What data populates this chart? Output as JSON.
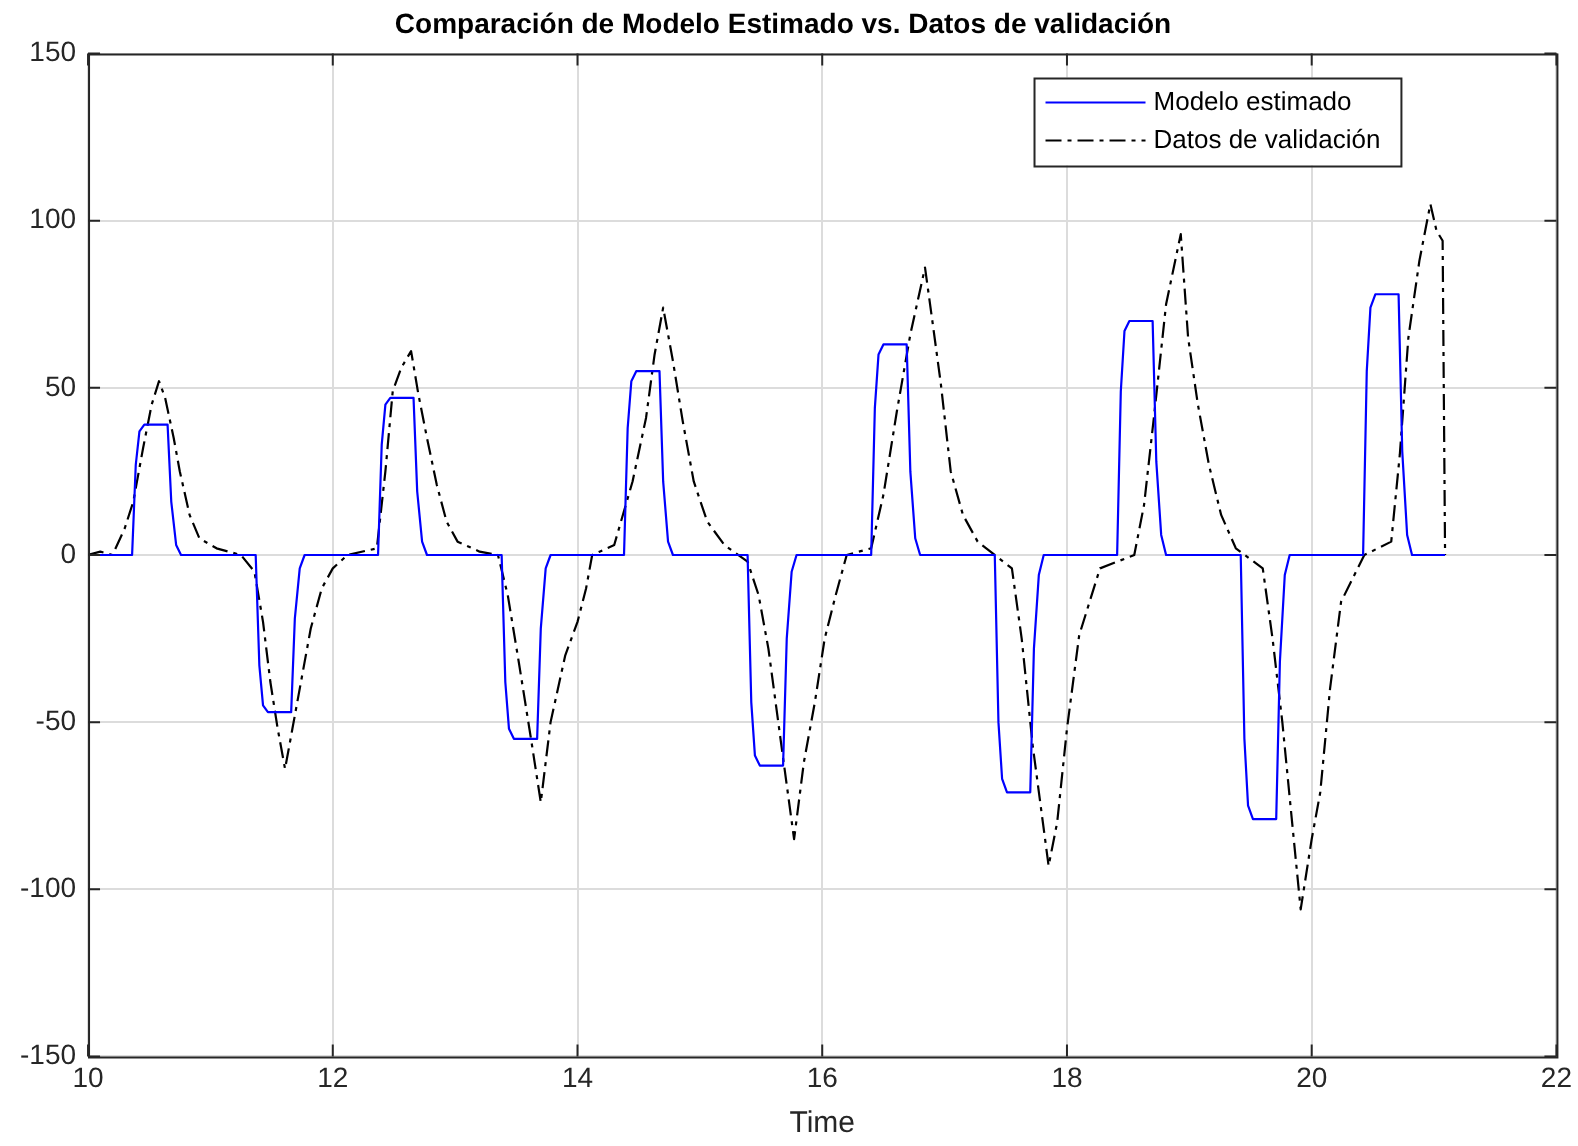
{
  "chart_data": {
    "type": "line",
    "title": "Comparación de Modelo Estimado vs. Datos de validación",
    "xlabel": "Time",
    "xlim": [
      10,
      22
    ],
    "xticks": [
      10,
      12,
      14,
      16,
      18,
      20,
      22
    ],
    "ylim": [
      -150,
      150
    ],
    "yticks": [
      -150,
      -100,
      -50,
      0,
      50,
      100,
      150
    ],
    "grid": true,
    "legend": "top right",
    "marker": "none",
    "series": [
      {
        "name": "Modelo estimado",
        "color": "#0000ff",
        "line_style": "solid",
        "x": [
          10,
          10.36,
          10.39,
          10.42,
          10.46,
          10.65,
          10.68,
          10.72,
          10.76,
          11.37,
          11.4,
          11.43,
          11.47,
          11.66,
          11.69,
          11.73,
          11.77,
          12.37,
          12.4,
          12.43,
          12.47,
          12.66,
          12.69,
          12.73,
          12.77,
          13.38,
          13.41,
          13.44,
          13.48,
          13.67,
          13.7,
          13.74,
          13.78,
          14.38,
          14.41,
          14.44,
          14.48,
          14.67,
          14.7,
          14.74,
          14.78,
          15.39,
          15.42,
          15.45,
          15.49,
          15.68,
          15.71,
          15.75,
          15.79,
          16.4,
          16.43,
          16.46,
          16.5,
          16.69,
          16.72,
          16.76,
          16.8,
          17.41,
          17.44,
          17.47,
          17.51,
          17.7,
          17.73,
          17.77,
          17.81,
          18.41,
          18.44,
          18.47,
          18.51,
          18.7,
          18.73,
          18.77,
          18.81,
          19.42,
          19.45,
          19.48,
          19.52,
          19.71,
          19.74,
          19.78,
          19.82,
          20.42,
          20.45,
          20.48,
          20.52,
          20.71,
          20.74,
          20.78,
          20.82,
          21.09
        ],
        "values": [
          0,
          0,
          27,
          37,
          39,
          39,
          16,
          3,
          0,
          0,
          -33,
          -45,
          -47,
          -47,
          -19,
          -4,
          0,
          0,
          33,
          45,
          47,
          47,
          19,
          4,
          0,
          0,
          -38,
          -52,
          -55,
          -55,
          -22,
          -4,
          0,
          0,
          38,
          52,
          55,
          55,
          22,
          4,
          0,
          0,
          -44,
          -60,
          -63,
          -63,
          -25,
          -5,
          0,
          0,
          44,
          60,
          63,
          63,
          25,
          5,
          0,
          0,
          -50,
          -67,
          -71,
          -71,
          -28,
          -6,
          0,
          0,
          49,
          67,
          70,
          70,
          28,
          6,
          0,
          0,
          -55,
          -75,
          -79,
          -79,
          -32,
          -6,
          0,
          0,
          55,
          74,
          78,
          78,
          31,
          6,
          0,
          0
        ]
      },
      {
        "name": "Datos de validación",
        "color": "#000000",
        "line_style": "dashed",
        "x": [
          10,
          10.1,
          10.2,
          10.3,
          10.37,
          10.45,
          10.52,
          10.58,
          10.63,
          10.7,
          10.75,
          10.83,
          10.91,
          11.05,
          11.25,
          11.36,
          11.43,
          11.49,
          11.55,
          11.61,
          11.67,
          11.74,
          11.82,
          11.91,
          12,
          12.12,
          12.36,
          12.43,
          12.49,
          12.56,
          12.64,
          12.7,
          12.77,
          12.85,
          12.93,
          13.02,
          13.2,
          13.35,
          13.43,
          13.52,
          13.62,
          13.7,
          13.78,
          13.9,
          14,
          14.07,
          14.12,
          14.18,
          14.3,
          14.45,
          14.56,
          14.63,
          14.7,
          14.78,
          14.86,
          14.95,
          15.06,
          15.2,
          15.39,
          15.48,
          15.56,
          15.67,
          15.77,
          15.85,
          15.94,
          16.02,
          16.11,
          16.2,
          16.4,
          16.5,
          16.61,
          16.72,
          16.84,
          16.9,
          16.97,
          17.05,
          17.15,
          17.27,
          17.55,
          17.63,
          17.72,
          17.85,
          17.92,
          18,
          18.1,
          18.27,
          18.55,
          18.63,
          18.71,
          18.81,
          18.93,
          18.99,
          19.07,
          19.16,
          19.26,
          19.38,
          19.6,
          19.68,
          19.76,
          19.84,
          19.91,
          20,
          20.07,
          20.15,
          20.24,
          20.43,
          20.65,
          20.72,
          20.79,
          20.88,
          20.97,
          21.02,
          21.07,
          21.09
        ],
        "values": [
          0,
          1,
          0,
          8,
          16,
          32,
          45,
          52,
          47,
          35,
          25,
          12,
          5,
          2,
          0,
          -5,
          -20,
          -38,
          -52,
          -64,
          -52,
          -38,
          -22,
          -10,
          -4,
          0,
          2,
          25,
          49,
          56,
          61,
          48,
          35,
          21,
          10,
          4,
          1,
          0,
          -12,
          -32,
          -55,
          -74,
          -50,
          -30,
          -20,
          -10,
          0,
          1,
          3,
          22,
          41,
          60,
          74,
          58,
          40,
          22,
          10,
          3,
          -2,
          -12,
          -28,
          -58,
          -85,
          -62,
          -44,
          -25,
          -12,
          0,
          2,
          18,
          43,
          66,
          86,
          70,
          51,
          25,
          12,
          4,
          -4,
          -25,
          -57,
          -93,
          -80,
          -52,
          -24,
          -4,
          0,
          15,
          41,
          75,
          96,
          65,
          45,
          27,
          12,
          2,
          -4,
          -25,
          -50,
          -80,
          -106,
          -85,
          -71,
          -40,
          -14,
          0,
          4,
          30,
          65,
          88,
          105,
          97,
          94,
          0
        ]
      }
    ]
  }
}
